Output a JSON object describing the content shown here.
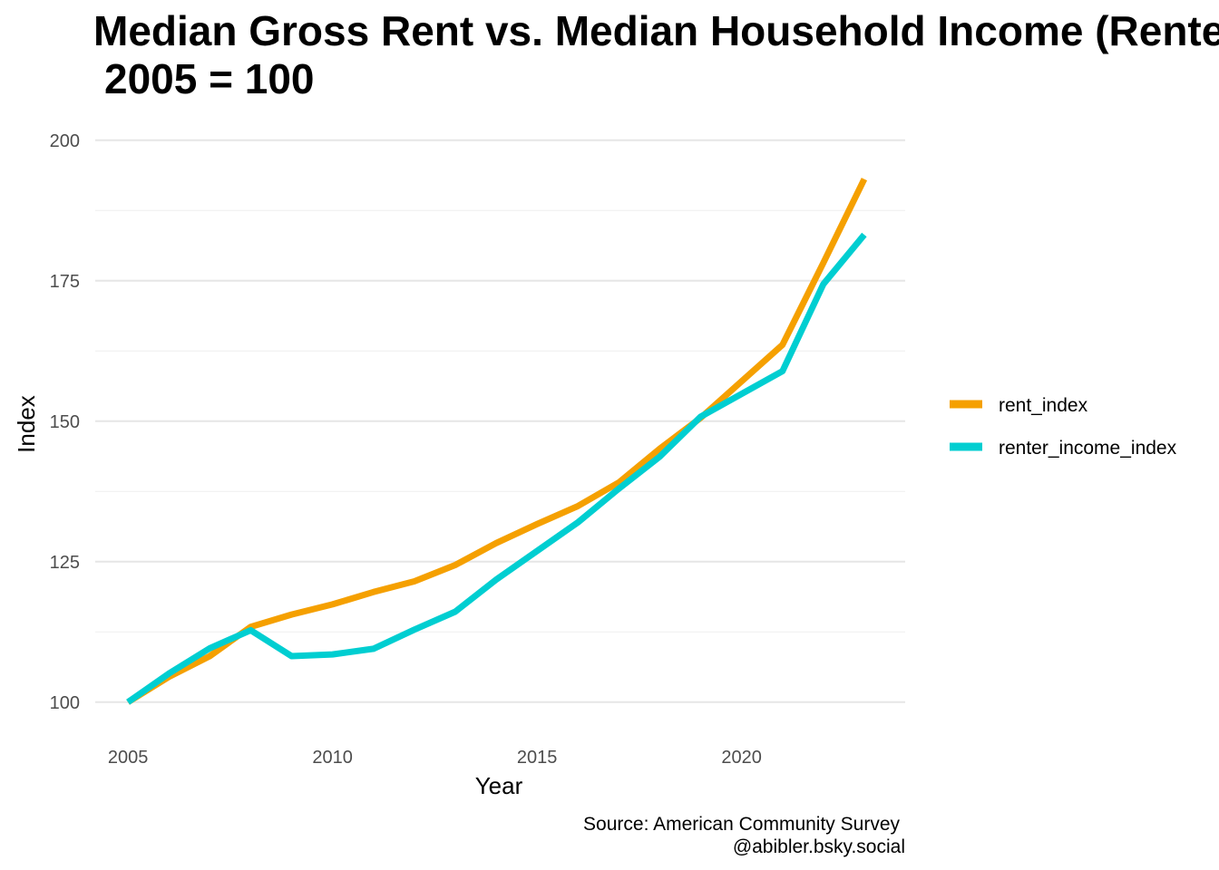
{
  "chart_data": {
    "type": "line",
    "title": "Median Gross Rent vs. Median Household Income (Renters)",
    "subtitle": "2005 = 100",
    "xlabel": "Year",
    "ylabel": "Index",
    "xlim": [
      2004.2,
      2024.0
    ],
    "ylim": [
      94,
      204
    ],
    "x_ticks": [
      2005,
      2010,
      2015,
      2020
    ],
    "y_ticks": [
      100,
      125,
      150,
      175,
      200
    ],
    "y_minor_ticks": [
      112.5,
      137.5,
      162.5,
      187.5
    ],
    "grid": true,
    "legend_position": "right",
    "caption": [
      "Source: American Community Survey",
      "@abibler.bsky.social"
    ],
    "x": [
      2005,
      2006,
      2007,
      2008,
      2009,
      2010,
      2011,
      2012,
      2013,
      2014,
      2015,
      2016,
      2017,
      2018,
      2019,
      2021,
      2022,
      2023
    ],
    "series": [
      {
        "name": "rent_index",
        "color": "#F5A000",
        "values": [
          100,
          104.5,
          108.2,
          113.4,
          115.6,
          117.4,
          119.6,
          121.5,
          124.4,
          128.3,
          131.7,
          134.9,
          139.1,
          145.1,
          150.6,
          163.6,
          178.2,
          193.1
        ]
      },
      {
        "name": "renter_income_index",
        "color": "#00CED1",
        "values": [
          100,
          105.1,
          109.6,
          112.8,
          108.2,
          108.5,
          109.5,
          112.9,
          116.1,
          121.8,
          126.9,
          132.0,
          138.0,
          143.7,
          150.8,
          158.9,
          174.4,
          183.2
        ]
      }
    ]
  }
}
